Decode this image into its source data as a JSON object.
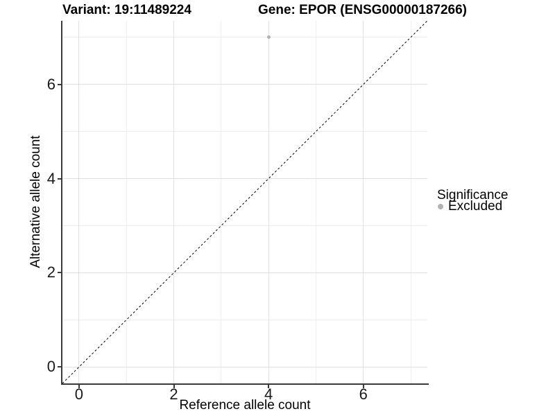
{
  "titles": {
    "variant": "Variant: 19:11489224",
    "gene": "Gene: EPOR (ENSG00000187266)"
  },
  "chart_data": {
    "type": "scatter",
    "title_left": "Variant: 19:11489224",
    "title_right": "Gene: EPOR (ENSG00000187266)",
    "xlabel": "Reference allele count",
    "ylabel": "Alternative allele count",
    "xlim": [
      -0.35,
      7.35
    ],
    "ylim": [
      -0.35,
      7.35
    ],
    "x_ticks": [
      0,
      2,
      4,
      6
    ],
    "y_ticks": [
      0,
      2,
      4,
      6
    ],
    "x_minor_gridlines": [
      1,
      3,
      5,
      7
    ],
    "y_minor_gridlines": [
      1,
      3,
      5,
      7
    ],
    "grid": true,
    "series": [
      {
        "name": "Excluded",
        "marker": "circle",
        "marker_diameter_px": 5,
        "color": "#b3b3b3",
        "points": [
          {
            "x": 4,
            "y": 7
          }
        ]
      }
    ],
    "reference_line": {
      "kind": "identity",
      "equation": "y = x",
      "style": "dashed",
      "color": "#000000"
    },
    "legend": {
      "title": "Significance",
      "position": "right",
      "items": [
        {
          "label": "Excluded",
          "color": "#b3b3b3"
        }
      ]
    },
    "style_colors": {
      "grid_major": "#e2e2e2",
      "grid_minor": "#eeeeee",
      "axis_line": "#3a3a3a",
      "tick_text": "#1a1a1a"
    }
  }
}
